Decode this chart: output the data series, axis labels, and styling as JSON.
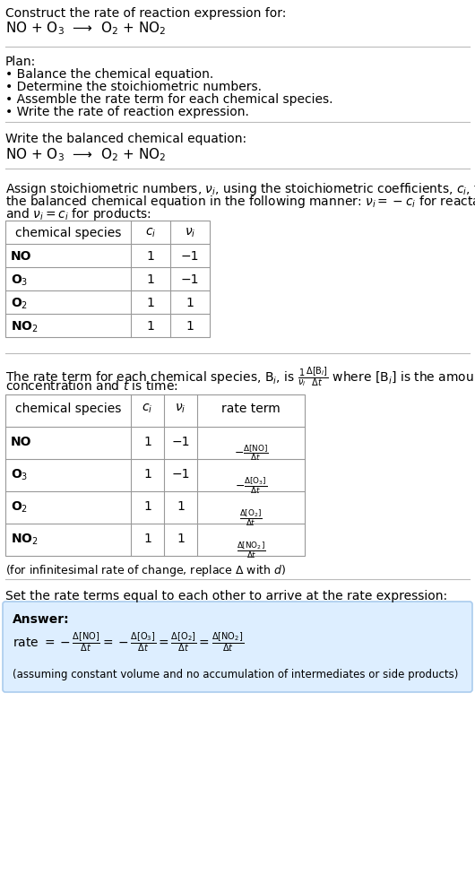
{
  "title_text": "Construct the rate of reaction expression for:",
  "reaction_eq": "NO + O$_3$  ⟶  O$_2$ + NO$_2$",
  "plan_header": "Plan:",
  "plan_items": [
    "• Balance the chemical equation.",
    "• Determine the stoichiometric numbers.",
    "• Assemble the rate term for each chemical species.",
    "• Write the rate of reaction expression."
  ],
  "balanced_header": "Write the balanced chemical equation:",
  "balanced_eq": "NO + O$_3$  ⟶  O$_2$ + NO$_2$",
  "assign_text1": "Assign stoichiometric numbers, $\\nu_i$, using the stoichiometric coefficients, $c_i$, from",
  "assign_text2": "the balanced chemical equation in the following manner: $\\nu_i = -c_i$ for reactants",
  "assign_text3": "and $\\nu_i = c_i$ for products:",
  "table1_headers": [
    "chemical species",
    "$c_i$",
    "$\\nu_i$"
  ],
  "table1_rows": [
    [
      "NO",
      "1",
      "−1"
    ],
    [
      "O$_3$",
      "1",
      "−1"
    ],
    [
      "O$_2$",
      "1",
      "1"
    ],
    [
      "NO$_2$",
      "1",
      "1"
    ]
  ],
  "rate_text1": "The rate term for each chemical species, B$_i$, is $\\frac{1}{\\nu_i}\\frac{\\Delta[\\mathrm{B}_i]}{\\Delta t}$ where [B$_i$] is the amount",
  "rate_text2": "concentration and $t$ is time:",
  "table2_headers": [
    "chemical species",
    "$c_i$",
    "$\\nu_i$",
    "rate term"
  ],
  "table2_rows": [
    [
      "NO",
      "1",
      "−1",
      "$-\\frac{\\Delta[\\mathrm{NO}]}{\\Delta t}$"
    ],
    [
      "O$_3$",
      "1",
      "−1",
      "$-\\frac{\\Delta[\\mathrm{O_3}]}{\\Delta t}$"
    ],
    [
      "O$_2$",
      "1",
      "1",
      "$\\frac{\\Delta[\\mathrm{O_2}]}{\\Delta t}$"
    ],
    [
      "NO$_2$",
      "1",
      "1",
      "$\\frac{\\Delta[\\mathrm{NO_2}]}{\\Delta t}$"
    ]
  ],
  "infinitesimal_note": "(for infinitesimal rate of change, replace Δ with $d$)",
  "set_text": "Set the rate terms equal to each other to arrive at the rate expression:",
  "answer_label": "Answer:",
  "assumption_note": "(assuming constant volume and no accumulation of intermediates or side products)",
  "bg_color": "#ffffff",
  "answer_bg_color": "#ddeeff",
  "answer_border_color": "#aaccee",
  "table_border_color": "#999999",
  "text_color": "#000000",
  "font_size": 10,
  "fig_width": 5.3,
  "fig_height": 9.76
}
